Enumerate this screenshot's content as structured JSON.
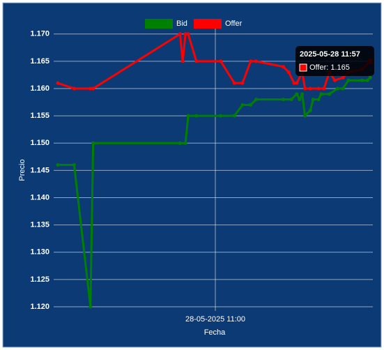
{
  "chart_data": {
    "type": "line",
    "xlabel": "Fecha",
    "ylabel": "Precio",
    "xlim": [
      "28-05-2025 10:02",
      "28-05-2025 11:58"
    ],
    "xticks": [
      "28-05-2025 11:00"
    ],
    "ylim": [
      1.12,
      1.1715
    ],
    "yticks": [
      {
        "value": 1.12,
        "label": "1.120"
      },
      1.125,
      {
        "value": 1.13,
        "label": "1.130"
      },
      1.135,
      {
        "value": 1.14,
        "label": "1.140"
      },
      1.145,
      {
        "value": 1.15,
        "label": "1.150"
      },
      1.155,
      {
        "value": 1.16,
        "label": "1.160"
      },
      1.165,
      {
        "value": 1.17,
        "label": "1.170"
      }
    ],
    "grid": true,
    "legend": "top",
    "series": [
      {
        "name": "Bid",
        "color": "#008000",
        "x": [
          "28-05-2025 10:02",
          "28-05-2025 10:08",
          "28-05-2025 10:14",
          "28-05-2025 10:15",
          "28-05-2025 10:47",
          "28-05-2025 10:49",
          "28-05-2025 10:50",
          "28-05-2025 10:53",
          "28-05-2025 11:02",
          "28-05-2025 11:07",
          "28-05-2025 11:10",
          "28-05-2025 11:13",
          "28-05-2025 11:15",
          "28-05-2025 11:25",
          "28-05-2025 11:28",
          "28-05-2025 11:30",
          "28-05-2025 11:31",
          "28-05-2025 11:32",
          "28-05-2025 11:33",
          "28-05-2025 11:35",
          "28-05-2025 11:36",
          "28-05-2025 11:38",
          "28-05-2025 11:39",
          "28-05-2025 11:42",
          "28-05-2025 11:45",
          "28-05-2025 11:47",
          "28-05-2025 11:49",
          "28-05-2025 11:54",
          "28-05-2025 11:56",
          "28-05-2025 11:57"
        ],
        "values": [
          1.146,
          1.146,
          1.12,
          1.15,
          1.15,
          1.15,
          1.155,
          1.155,
          1.155,
          1.155,
          1.157,
          1.157,
          1.158,
          1.158,
          1.158,
          1.159,
          1.158,
          1.159,
          1.155,
          1.156,
          1.158,
          1.158,
          1.159,
          1.159,
          1.16,
          1.16,
          1.1615,
          1.1615,
          1.1615,
          1.162
        ]
      },
      {
        "name": "Offer",
        "color": "#ff0000",
        "x": [
          "28-05-2025 10:02",
          "28-05-2025 10:08",
          "28-05-2025 10:14",
          "28-05-2025 10:15",
          "28-05-2025 10:47",
          "28-05-2025 10:48",
          "28-05-2025 10:49",
          "28-05-2025 10:50",
          "28-05-2025 10:53",
          "28-05-2025 11:02",
          "28-05-2025 11:07",
          "28-05-2025 11:10",
          "28-05-2025 11:13",
          "28-05-2025 11:15",
          "28-05-2025 11:25",
          "28-05-2025 11:27",
          "28-05-2025 11:29",
          "28-05-2025 11:30",
          "28-05-2025 11:32",
          "28-05-2025 11:33",
          "28-05-2025 11:35",
          "28-05-2025 11:38",
          "28-05-2025 11:40",
          "28-05-2025 11:42",
          "28-05-2025 11:44",
          "28-05-2025 11:47",
          "28-05-2025 11:49",
          "28-05-2025 11:54",
          "28-05-2025 11:57"
        ],
        "values": [
          1.161,
          1.16,
          1.16,
          1.16,
          1.17,
          1.165,
          1.17,
          1.17,
          1.165,
          1.165,
          1.161,
          1.161,
          1.165,
          1.165,
          1.164,
          1.163,
          1.161,
          1.161,
          1.163,
          1.16,
          1.16,
          1.16,
          1.16,
          1.163,
          1.1615,
          1.162,
          1.163,
          1.1635,
          1.165
        ]
      }
    ],
    "tooltip": {
      "title": "2025-05-28 11:57",
      "label": "Offer: 1.165",
      "series": 1,
      "point": 28
    }
  }
}
